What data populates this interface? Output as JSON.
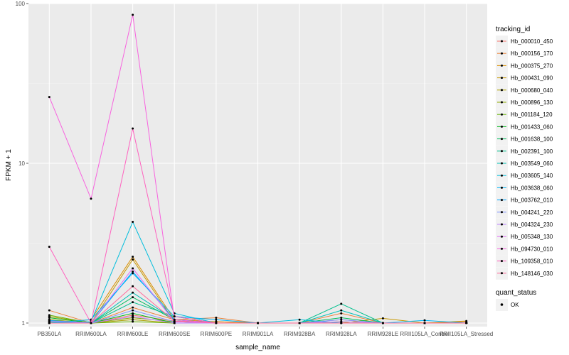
{
  "chart_data": {
    "type": "line",
    "title": "",
    "xlabel": "sample_name",
    "ylabel": "FPKM + 1",
    "yscale": "log10",
    "ylim": [
      0.95,
      100
    ],
    "yticks": [
      {
        "value": 1,
        "label": "1"
      },
      {
        "value": 10,
        "label": "10"
      },
      {
        "value": 100,
        "label": "100"
      }
    ],
    "categories": [
      "PB350LA",
      "RRIM600LA",
      "RRIM600LE",
      "RRIM600SE",
      "RRIM600PE",
      "RRIM901LA",
      "RRIM928BA",
      "RRIM928LA",
      "RRIM928LE",
      "RRII105LA_Control",
      "RRII105LA_Stressed"
    ],
    "colors": {
      "panel_background": "#ebebeb",
      "grid_major": "#ffffff",
      "grid_minor": "#f5f5f5",
      "point": "#000000"
    },
    "legend": {
      "title": "tracking_id",
      "placement": "right"
    },
    "status_legend": {
      "title": "quant_status",
      "entries": [
        "OK"
      ]
    },
    "series": [
      {
        "name": "Hb_000010_450",
        "color": "#F8766D",
        "values": [
          1.05,
          1.0,
          1.12,
          1.03,
          1.02,
          1.0,
          1.0,
          1.05,
          1.0,
          1.0,
          1.0
        ]
      },
      {
        "name": "Hb_000156_170",
        "color": "#EC8239",
        "values": [
          1.2,
          1.0,
          1.25,
          1.05,
          1.08,
          1.0,
          1.0,
          1.15,
          1.0,
          1.0,
          1.02
        ]
      },
      {
        "name": "Hb_000375_270",
        "color": "#DB8E00",
        "values": [
          1.0,
          1.05,
          2.6,
          1.05,
          1.02,
          1.0,
          1.0,
          1.0,
          1.0,
          1.0,
          1.0
        ]
      },
      {
        "name": "Hb_000431_090",
        "color": "#C79800",
        "values": [
          1.02,
          1.0,
          2.5,
          1.02,
          1.0,
          1.0,
          1.0,
          1.0,
          1.07,
          1.0,
          1.03
        ]
      },
      {
        "name": "Hb_000680_040",
        "color": "#AEA200",
        "values": [
          1.1,
          1.0,
          1.05,
          1.0,
          1.0,
          1.0,
          1.0,
          1.0,
          1.0,
          1.0,
          1.0
        ]
      },
      {
        "name": "Hb_000896_130",
        "color": "#8FAA00",
        "values": [
          1.05,
          1.0,
          1.08,
          1.02,
          1.0,
          1.0,
          1.0,
          1.02,
          1.0,
          1.0,
          1.0
        ]
      },
      {
        "name": "Hb_001184_120",
        "color": "#64B200",
        "values": [
          1.12,
          1.0,
          1.02,
          1.0,
          1.0,
          1.0,
          1.0,
          1.0,
          1.0,
          1.0,
          1.0
        ]
      },
      {
        "name": "Hb_001433_060",
        "color": "#00B81B",
        "values": [
          1.08,
          1.0,
          1.15,
          1.0,
          1.0,
          1.0,
          1.0,
          1.0,
          1.0,
          1.0,
          1.0
        ]
      },
      {
        "name": "Hb_001638_100",
        "color": "#00BD5C",
        "values": [
          1.03,
          1.0,
          1.45,
          1.05,
          1.0,
          1.0,
          1.0,
          1.08,
          1.0,
          1.0,
          1.0
        ]
      },
      {
        "name": "Hb_002391_100",
        "color": "#00C08E",
        "values": [
          1.0,
          1.0,
          1.35,
          1.1,
          1.0,
          1.0,
          1.0,
          1.32,
          1.0,
          1.0,
          1.0
        ]
      },
      {
        "name": "Hb_003549_060",
        "color": "#00C1B7",
        "values": [
          1.02,
          1.0,
          1.55,
          1.05,
          1.0,
          1.0,
          1.0,
          1.2,
          1.0,
          1.0,
          1.0
        ]
      },
      {
        "name": "Hb_003605_140",
        "color": "#00BDDC",
        "values": [
          1.0,
          1.02,
          4.3,
          1.15,
          1.0,
          1.0,
          1.05,
          1.0,
          1.0,
          1.0,
          1.0
        ]
      },
      {
        "name": "Hb_003638_060",
        "color": "#00B5F9",
        "values": [
          1.0,
          1.05,
          2.05,
          1.1,
          1.05,
          1.0,
          1.0,
          1.0,
          1.0,
          1.04,
          1.0
        ]
      },
      {
        "name": "Hb_003762_010",
        "color": "#00A7FF",
        "values": [
          1.04,
          1.0,
          2.1,
          1.05,
          1.0,
          1.0,
          1.0,
          1.0,
          1.0,
          1.0,
          1.0
        ]
      },
      {
        "name": "Hb_004241_220",
        "color": "#7F96FF",
        "values": [
          1.0,
          1.0,
          1.2,
          1.02,
          1.0,
          1.0,
          1.0,
          1.05,
          1.0,
          1.0,
          1.0
        ]
      },
      {
        "name": "Hb_004324_230",
        "color": "#BC81FF",
        "values": [
          1.03,
          1.0,
          1.1,
          1.0,
          1.0,
          1.0,
          1.0,
          1.02,
          1.0,
          1.0,
          1.0
        ]
      },
      {
        "name": "Hb_005348_130",
        "color": "#E26EF7",
        "values": [
          1.0,
          1.0,
          2.2,
          1.02,
          1.0,
          1.0,
          1.0,
          1.0,
          1.0,
          1.0,
          1.0
        ]
      },
      {
        "name": "Hb_094730_010",
        "color": "#F863DF",
        "values": [
          26.0,
          6.0,
          85.0,
          1.05,
          1.0,
          1.0,
          1.0,
          1.0,
          1.0,
          1.0,
          1.0
        ]
      },
      {
        "name": "Hb_109358_010",
        "color": "#FF62BF",
        "values": [
          3.0,
          1.0,
          16.5,
          1.1,
          1.0,
          1.0,
          1.0,
          1.0,
          1.0,
          1.0,
          1.0
        ]
      },
      {
        "name": "Hb_148146_030",
        "color": "#FF6A9A",
        "values": [
          1.0,
          1.0,
          1.7,
          1.03,
          1.0,
          1.0,
          1.0,
          1.0,
          1.0,
          1.0,
          1.0
        ]
      }
    ]
  }
}
